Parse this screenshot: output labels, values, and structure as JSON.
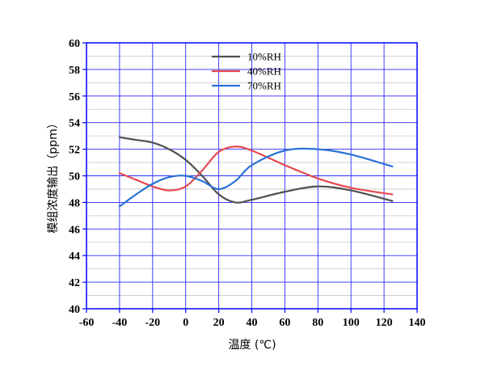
{
  "chart_data": {
    "type": "line",
    "title": "",
    "xlabel": "温度 (℃)",
    "ylabel": "模组浓度输出（ppm）",
    "xlim": [
      -60,
      140
    ],
    "ylim": [
      40,
      60
    ],
    "xticks": [
      -60,
      -40,
      -20,
      0,
      20,
      40,
      60,
      80,
      100,
      120,
      140
    ],
    "yticks": [
      40,
      42,
      44,
      46,
      48,
      50,
      52,
      54,
      56,
      58,
      60
    ],
    "grid": true,
    "legend_position": "top-center",
    "series": [
      {
        "name": "10%RH",
        "color": "#505050",
        "points": [
          [
            -40,
            52.9
          ],
          [
            -30,
            52.7
          ],
          [
            -20,
            52.5
          ],
          [
            -10,
            52.0
          ],
          [
            0,
            51.2
          ],
          [
            10,
            50.0
          ],
          [
            20,
            48.6
          ],
          [
            30,
            48.0
          ],
          [
            40,
            48.2
          ],
          [
            60,
            48.8
          ],
          [
            80,
            49.2
          ],
          [
            100,
            48.9
          ],
          [
            125,
            48.1
          ]
        ]
      },
      {
        "name": "40%RH",
        "color": "#e8484e",
        "points": [
          [
            -40,
            50.2
          ],
          [
            -30,
            49.7
          ],
          [
            -20,
            49.2
          ],
          [
            -10,
            48.9
          ],
          [
            0,
            49.2
          ],
          [
            10,
            50.4
          ],
          [
            20,
            51.8
          ],
          [
            30,
            52.2
          ],
          [
            40,
            51.9
          ],
          [
            60,
            50.8
          ],
          [
            80,
            49.8
          ],
          [
            100,
            49.1
          ],
          [
            125,
            48.6
          ]
        ]
      },
      {
        "name": "70%RH",
        "color": "#2a72d6",
        "points": [
          [
            -40,
            47.7
          ],
          [
            -30,
            48.6
          ],
          [
            -20,
            49.4
          ],
          [
            -10,
            49.9
          ],
          [
            0,
            50.0
          ],
          [
            10,
            49.6
          ],
          [
            20,
            49.0
          ],
          [
            30,
            49.6
          ],
          [
            40,
            50.8
          ],
          [
            60,
            51.9
          ],
          [
            80,
            52.0
          ],
          [
            100,
            51.6
          ],
          [
            125,
            50.7
          ]
        ]
      }
    ]
  },
  "colors": {
    "axis": "#0000ff",
    "grid": "#2b2bff",
    "minor_grid": "#c8c8c8"
  }
}
